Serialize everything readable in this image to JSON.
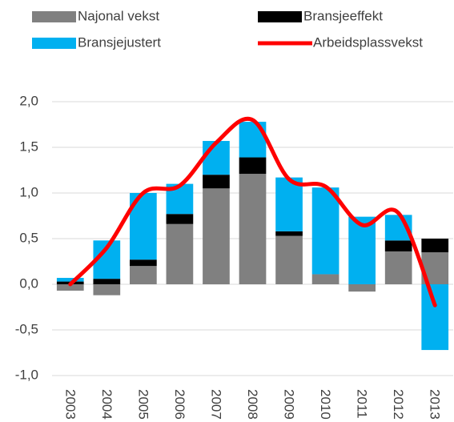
{
  "chart_data": {
    "type": "stacked_bar_line",
    "categories": [
      "2003",
      "2004",
      "2005",
      "2006",
      "2007",
      "2008",
      "2009",
      "2010",
      "2011",
      "2012",
      "2013"
    ],
    "series": [
      {
        "name": "Najonal vekst",
        "color": "#808080",
        "kind": "bar",
        "values": [
          -0.07,
          -0.12,
          0.2,
          0.66,
          1.05,
          1.21,
          0.53,
          0.11,
          -0.08,
          0.36,
          0.35
        ]
      },
      {
        "name": "Bransjeeffekt",
        "color": "#000000",
        "kind": "bar",
        "values": [
          0.03,
          0.06,
          0.07,
          0.11,
          0.15,
          0.18,
          0.05,
          0.0,
          0.0,
          0.12,
          0.15
        ]
      },
      {
        "name": "Bransjejustert",
        "color": "#00b0f0",
        "kind": "bar",
        "values": [
          0.04,
          0.42,
          0.73,
          0.33,
          0.37,
          0.39,
          0.59,
          0.95,
          0.74,
          0.28,
          -0.72
        ]
      },
      {
        "name": "Arbeidsplassvekst",
        "color": "#ff0000",
        "kind": "line",
        "values": [
          0.0,
          0.4,
          1.0,
          1.08,
          1.55,
          1.8,
          1.15,
          1.07,
          0.65,
          0.78,
          -0.23
        ]
      }
    ],
    "ylim": [
      -1,
      2
    ],
    "yticks": [
      {
        "value": -1,
        "label": "-1,0"
      },
      {
        "value": -0.5,
        "label": "-0,5"
      },
      {
        "value": 0,
        "label": "0,0"
      },
      {
        "value": 0.5,
        "label": "0,5"
      },
      {
        "value": 1,
        "label": "1,0"
      },
      {
        "value": 1.5,
        "label": "1,5"
      },
      {
        "value": 2,
        "label": "2,0"
      }
    ],
    "grid": true
  }
}
